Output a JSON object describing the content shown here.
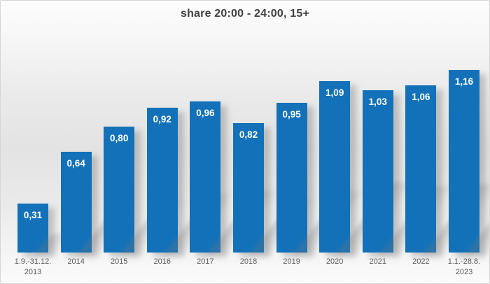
{
  "chart": {
    "colors": {
      "bar": "#1271b8",
      "title": "#404040",
      "axis_label": "#595959",
      "value_label": "#ffffff",
      "border": "#d6d6d6"
    }
  },
  "chart_data": {
    "type": "bar",
    "title": "share 20:00 - 24:00, 15+",
    "categories": [
      "1.9.-31.12. 2013",
      "2014",
      "2015",
      "2016",
      "2017",
      "2018",
      "2019",
      "2020",
      "2021",
      "2022",
      "1.1.-28.8. 2023"
    ],
    "category_lines": [
      [
        "1.9.-31.12.",
        "2013"
      ],
      [
        "2014"
      ],
      [
        "2015"
      ],
      [
        "2016"
      ],
      [
        "2017"
      ],
      [
        "2018"
      ],
      [
        "2019"
      ],
      [
        "2020"
      ],
      [
        "2021"
      ],
      [
        "2022"
      ],
      [
        "1.1.-28.8.",
        "2023"
      ]
    ],
    "values": [
      0.31,
      0.64,
      0.8,
      0.92,
      0.96,
      0.82,
      0.95,
      1.09,
      1.03,
      1.06,
      1.16
    ],
    "value_labels": [
      "0,31",
      "0,64",
      "0,80",
      "0,92",
      "0,96",
      "0,82",
      "0,95",
      "1,09",
      "1,03",
      "1,06",
      "1,16"
    ],
    "decimal_separator": ",",
    "xlabel": "",
    "ylabel": "",
    "ylim": [
      0,
      1.2
    ],
    "grid": false,
    "legend": "none",
    "value_label_position": "inside-top",
    "axis_line": "none"
  }
}
